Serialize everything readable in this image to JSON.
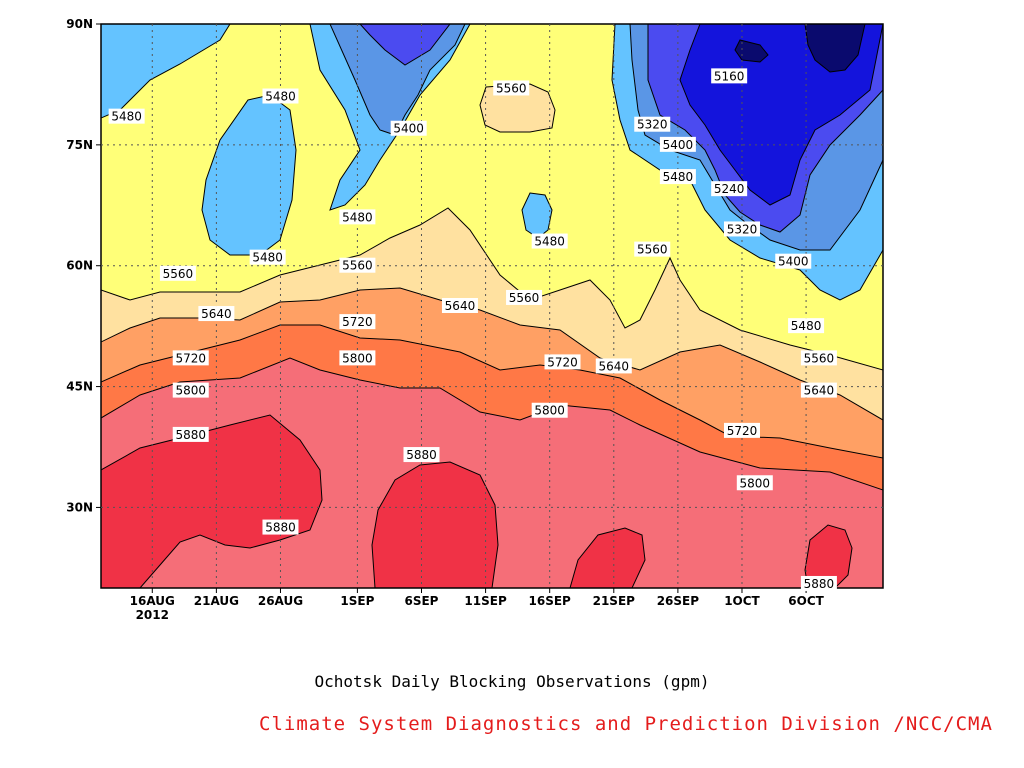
{
  "chart_data": {
    "type": "heatmap",
    "title": "Ochotsk Daily Blocking Observations (gpm)",
    "credit": "Climate System Diagnostics and Prediction Division /NCC/CMA",
    "x_ticks": [
      {
        "date": "2012-08-16",
        "label": "16AUG",
        "sublabel": "2012"
      },
      {
        "date": "2012-08-21",
        "label": "21AUG"
      },
      {
        "date": "2012-08-26",
        "label": "26AUG"
      },
      {
        "date": "2012-09-01",
        "label": "1SEP"
      },
      {
        "date": "2012-09-06",
        "label": "6SEP"
      },
      {
        "date": "2012-09-11",
        "label": "11SEP"
      },
      {
        "date": "2012-09-16",
        "label": "16SEP"
      },
      {
        "date": "2012-09-21",
        "label": "21SEP"
      },
      {
        "date": "2012-09-26",
        "label": "26SEP"
      },
      {
        "date": "2012-10-01",
        "label": "1OCT"
      },
      {
        "date": "2012-10-06",
        "label": "6OCT"
      }
    ],
    "y_ticks": [
      {
        "value": 30,
        "label": "30N"
      },
      {
        "value": 45,
        "label": "45N"
      },
      {
        "value": 60,
        "label": "60N"
      },
      {
        "value": 75,
        "label": "75N"
      },
      {
        "value": 90,
        "label": "90N"
      }
    ],
    "xlim": [
      "2012-08-12",
      "2012-10-12"
    ],
    "ylim": [
      20,
      90
    ],
    "grid": true,
    "levels": [
      5160,
      5240,
      5320,
      5400,
      5480,
      5560,
      5640,
      5720,
      5800,
      5880
    ],
    "level_colors": {
      "below_5160": "#0a0a6e",
      "5160_5240": "#1414dc",
      "5240_5320": "#4b4bf0",
      "5320_5400": "#5a96e6",
      "5400_5480": "#64c3ff",
      "5480_5560": "#ffff78",
      "5560_5640": "#ffe1a0",
      "5640_5720": "#ffa064",
      "5720_5800": "#ff7846",
      "5800_5880": "#f56e78",
      "above_5880": "#f03246"
    },
    "contour_labels": [
      {
        "date": "2012-08-14",
        "lat": 78.5,
        "value": 5480
      },
      {
        "date": "2012-08-26",
        "lat": 81,
        "value": 5480
      },
      {
        "date": "2012-09-05",
        "lat": 77,
        "value": 5400
      },
      {
        "date": "2012-09-13",
        "lat": 82,
        "value": 5560
      },
      {
        "date": "2012-09-30",
        "lat": 83.5,
        "value": 5160
      },
      {
        "date": "2012-09-24",
        "lat": 77.5,
        "value": 5320
      },
      {
        "date": "2012-09-26",
        "lat": 75,
        "value": 5400
      },
      {
        "date": "2012-09-26",
        "lat": 71,
        "value": 5480
      },
      {
        "date": "2012-09-30",
        "lat": 69.5,
        "value": 5240
      },
      {
        "date": "2012-10-01",
        "lat": 64.5,
        "value": 5320
      },
      {
        "date": "2012-10-05",
        "lat": 60.5,
        "value": 5400
      },
      {
        "date": "2012-09-01",
        "lat": 66,
        "value": 5480
      },
      {
        "date": "2012-09-16",
        "lat": 63,
        "value": 5480
      },
      {
        "date": "2012-08-25",
        "lat": 61,
        "value": 5480
      },
      {
        "date": "2012-08-18",
        "lat": 59,
        "value": 5560
      },
      {
        "date": "2012-09-01",
        "lat": 60,
        "value": 5560
      },
      {
        "date": "2012-09-14",
        "lat": 56,
        "value": 5560
      },
      {
        "date": "2012-09-24",
        "lat": 62,
        "value": 5560
      },
      {
        "date": "2012-10-07",
        "lat": 48.5,
        "value": 5560
      },
      {
        "date": "2012-08-21",
        "lat": 54,
        "value": 5640
      },
      {
        "date": "2012-09-09",
        "lat": 55,
        "value": 5640
      },
      {
        "date": "2012-09-21",
        "lat": 47.5,
        "value": 5640
      },
      {
        "date": "2012-10-07",
        "lat": 44.5,
        "value": 5640
      },
      {
        "date": "2012-10-06",
        "lat": 52.5,
        "value": 5480
      },
      {
        "date": "2012-08-19",
        "lat": 48.5,
        "value": 5720
      },
      {
        "date": "2012-09-01",
        "lat": 53,
        "value": 5720
      },
      {
        "date": "2012-09-17",
        "lat": 48,
        "value": 5720
      },
      {
        "date": "2012-10-01",
        "lat": 39.5,
        "value": 5720
      },
      {
        "date": "2012-08-19",
        "lat": 44.5,
        "value": 5800
      },
      {
        "date": "2012-09-01",
        "lat": 48.5,
        "value": 5800
      },
      {
        "date": "2012-09-16",
        "lat": 42,
        "value": 5800
      },
      {
        "date": "2012-10-02",
        "lat": 33,
        "value": 5800
      },
      {
        "date": "2012-08-19",
        "lat": 39,
        "value": 5880
      },
      {
        "date": "2012-09-06",
        "lat": 36.5,
        "value": 5880
      },
      {
        "date": "2012-08-26",
        "lat": 27.5,
        "value": 5880
      },
      {
        "date": "2012-10-07",
        "lat": 20.5,
        "value": 5880
      }
    ]
  }
}
